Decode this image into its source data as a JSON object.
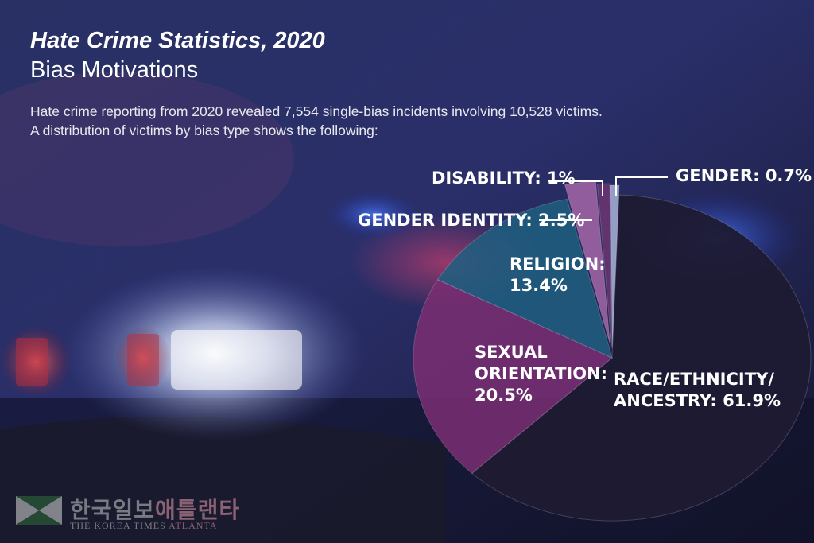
{
  "header": {
    "title": "Hate Crime Statistics, 2020",
    "subtitle": "Bias Motivations"
  },
  "description": {
    "line1": "Hate crime reporting from 2020 revealed 7,554 single-bias incidents involving 10,528 victims.",
    "line2": "A distribution of victims by bias type shows the following:"
  },
  "logo": {
    "korean": "한국일보",
    "korean_highlight": "애틀랜타",
    "english": "THE KOREA TIMES",
    "english_highlight": "ATLANTA"
  },
  "chart_data": {
    "type": "pie",
    "title": "Bias Motivations",
    "slices": [
      {
        "name": "RACE/ETHNICITY/ ANCESTRY",
        "value": 61.9,
        "label_lines": [
          "RACE/ETHNICITY/",
          "ANCESTRY: 61.9%"
        ],
        "color": "#1e1a33"
      },
      {
        "name": "SEXUAL ORIENTATION",
        "value": 20.5,
        "label_lines": [
          "SEXUAL",
          "ORIENTATION:",
          "20.5%"
        ],
        "color": "#7a2e72"
      },
      {
        "name": "RELIGION",
        "value": 13.4,
        "label_lines": [
          "RELIGION:",
          "13.4%"
        ],
        "color": "#1f5f80"
      },
      {
        "name": "GENDER IDENTITY",
        "value": 2.5,
        "label_lines": [
          "GENDER IDENTITY: 2.5%"
        ],
        "color": "#a466a8"
      },
      {
        "name": "DISABILITY",
        "value": 1,
        "label_lines": [
          "DISABILITY: 1%"
        ],
        "color": "#6e3572"
      },
      {
        "name": "GENDER",
        "value": 0.7,
        "label_lines": [
          "GENDER: 0.7%"
        ],
        "color": "#aab2d6"
      }
    ],
    "legend": "none"
  }
}
